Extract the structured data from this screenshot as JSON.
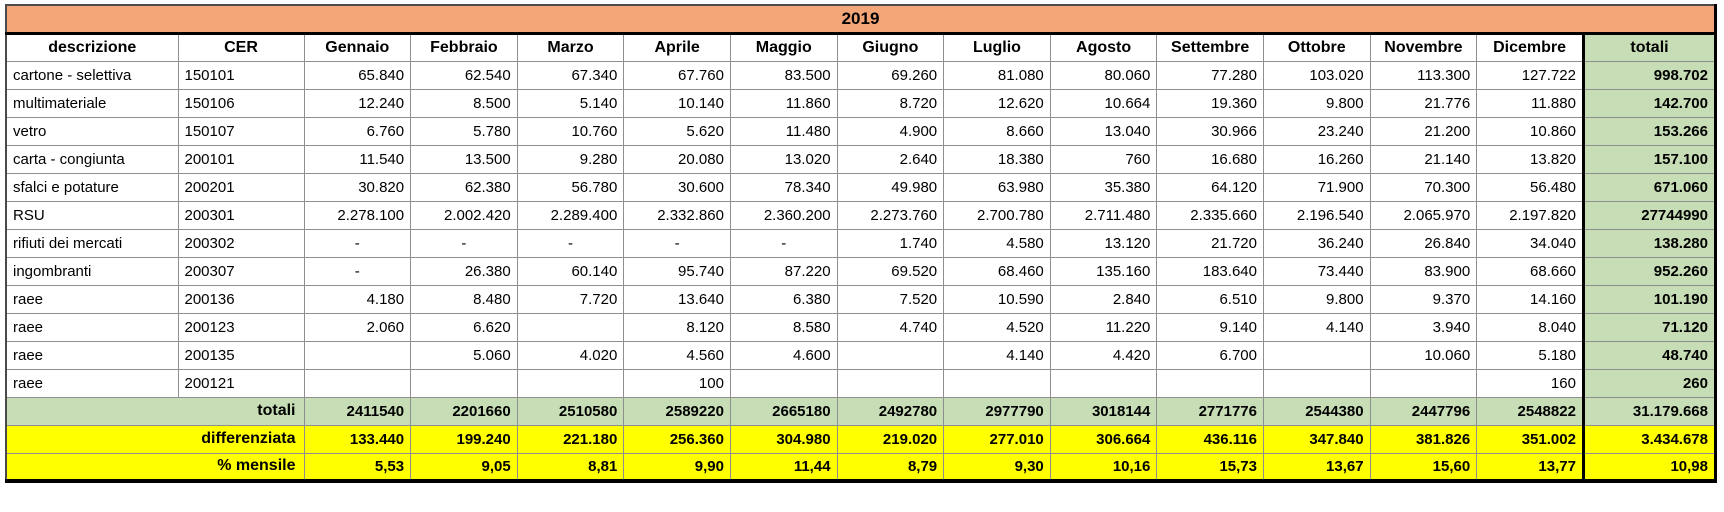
{
  "title": "2019",
  "columns": {
    "descrizione": "descrizione",
    "cer": "CER",
    "months": [
      "Gennaio",
      "Febbraio",
      "Marzo",
      "Aprile",
      "Maggio",
      "Giugno",
      "Luglio",
      "Agosto",
      "Settembre",
      "Ottobre",
      "Novembre",
      "Dicembre"
    ],
    "totali": "totali"
  },
  "rows": [
    {
      "descrizione": "cartone - selettiva",
      "cer": "150101",
      "values": [
        "65.840",
        "62.540",
        "67.340",
        "67.760",
        "83.500",
        "69.260",
        "81.080",
        "80.060",
        "77.280",
        "103.020",
        "113.300",
        "127.722"
      ],
      "totale": "998.702"
    },
    {
      "descrizione": "multimateriale",
      "cer": "150106",
      "values": [
        "12.240",
        "8.500",
        "5.140",
        "10.140",
        "11.860",
        "8.720",
        "12.620",
        "10.664",
        "19.360",
        "9.800",
        "21.776",
        "11.880"
      ],
      "totale": "142.700"
    },
    {
      "descrizione": "vetro",
      "cer": "150107",
      "values": [
        "6.760",
        "5.780",
        "10.760",
        "5.620",
        "11.480",
        "4.900",
        "8.660",
        "13.040",
        "30.966",
        "23.240",
        "21.200",
        "10.860"
      ],
      "totale": "153.266"
    },
    {
      "descrizione": "carta - congiunta",
      "cer": "200101",
      "values": [
        "11.540",
        "13.500",
        "9.280",
        "20.080",
        "13.020",
        "2.640",
        "18.380",
        "760",
        "16.680",
        "16.260",
        "21.140",
        "13.820"
      ],
      "totale": "157.100"
    },
    {
      "descrizione": "sfalci e potature",
      "cer": "200201",
      "values": [
        "30.820",
        "62.380",
        "56.780",
        "30.600",
        "78.340",
        "49.980",
        "63.980",
        "35.380",
        "64.120",
        "71.900",
        "70.300",
        "56.480"
      ],
      "totale": "671.060"
    },
    {
      "descrizione": "RSU",
      "cer": "200301",
      "values": [
        "2.278.100",
        "2.002.420",
        "2.289.400",
        "2.332.860",
        "2.360.200",
        "2.273.760",
        "2.700.780",
        "2.711.480",
        "2.335.660",
        "2.196.540",
        "2.065.970",
        "2.197.820"
      ],
      "totale": "27744990"
    },
    {
      "descrizione": "rifiuti dei mercati",
      "cer": "200302",
      "values": [
        "-",
        "-",
        "-",
        "-",
        "-",
        "1.740",
        "4.580",
        "13.120",
        "21.720",
        "36.240",
        "26.840",
        "34.040"
      ],
      "totale": "138.280"
    },
    {
      "descrizione": "ingombranti",
      "cer": "200307",
      "values": [
        "-",
        "26.380",
        "60.140",
        "95.740",
        "87.220",
        "69.520",
        "68.460",
        "135.160",
        "183.640",
        "73.440",
        "83.900",
        "68.660"
      ],
      "totale": "952.260"
    },
    {
      "descrizione": "raee",
      "cer": "200136",
      "values": [
        "4.180",
        "8.480",
        "7.720",
        "13.640",
        "6.380",
        "7.520",
        "10.590",
        "2.840",
        "6.510",
        "9.800",
        "9.370",
        "14.160"
      ],
      "totale": "101.190"
    },
    {
      "descrizione": "raee",
      "cer": "200123",
      "values": [
        "2.060",
        "6.620",
        "",
        "8.120",
        "8.580",
        "4.740",
        "4.520",
        "11.220",
        "9.140",
        "4.140",
        "3.940",
        "8.040"
      ],
      "totale": "71.120"
    },
    {
      "descrizione": "raee",
      "cer": "200135",
      "values": [
        "",
        "5.060",
        "4.020",
        "4.560",
        "4.600",
        "",
        "4.140",
        "4.420",
        "6.700",
        "",
        "10.060",
        "5.180"
      ],
      "totale": "48.740"
    },
    {
      "descrizione": "raee",
      "cer": "200121",
      "values": [
        "",
        "",
        "",
        "100",
        "",
        "",
        "",
        "",
        "",
        "",
        "",
        "160"
      ],
      "totale": "260"
    }
  ],
  "summary_rows": [
    {
      "label": "totali",
      "style": "totals",
      "values": [
        "2411540",
        "2201660",
        "2510580",
        "2589220",
        "2665180",
        "2492780",
        "2977790",
        "3018144",
        "2771776",
        "2544380",
        "2447796",
        "2548822"
      ],
      "totale": "31.179.668"
    },
    {
      "label": "differenziata",
      "style": "diff",
      "values": [
        "133.440",
        "199.240",
        "221.180",
        "256.360",
        "304.980",
        "219.020",
        "277.010",
        "306.664",
        "436.116",
        "347.840",
        "381.826",
        "351.002"
      ],
      "totale": "3.434.678"
    },
    {
      "label": "% mensile",
      "style": "percent",
      "values": [
        "5,53",
        "9,05",
        "8,81",
        "9,90",
        "11,44",
        "8,79",
        "9,30",
        "10,16",
        "15,73",
        "13,67",
        "15,60",
        "13,77"
      ],
      "totale": "10,98"
    }
  ],
  "colors": {
    "title_bg": "#F3A678",
    "totals_bg": "#C7DDB5",
    "highlight_bg": "#FFFF00"
  }
}
